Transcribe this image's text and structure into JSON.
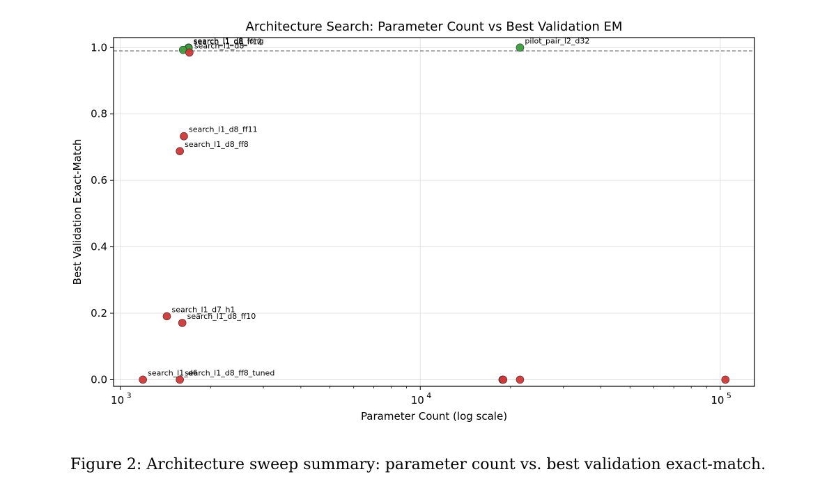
{
  "chart_data": {
    "type": "scatter",
    "title": "Architecture Search: Parameter Count vs Best Validation EM",
    "xlabel": "Parameter Count (log scale)",
    "ylabel": "Best Validation Exact-Match",
    "xscale": "log",
    "xlim": [
      950,
      130000
    ],
    "ylim": [
      -0.02,
      1.03
    ],
    "x_ticks": [
      {
        "value": 1000,
        "base": "10",
        "exp": "3"
      },
      {
        "value": 10000,
        "base": "10",
        "exp": "4"
      },
      {
        "value": 100000,
        "base": "10",
        "exp": "5"
      }
    ],
    "y_ticks": [
      {
        "value": 0.0,
        "label": "0.0"
      },
      {
        "value": 0.2,
        "label": "0.2"
      },
      {
        "value": 0.4,
        "label": "0.4"
      },
      {
        "value": 0.6,
        "label": "0.6"
      },
      {
        "value": 0.8,
        "label": "0.8"
      },
      {
        "value": 1.0,
        "label": "1.0"
      }
    ],
    "grid": true,
    "reference_line": {
      "y": 0.99,
      "style": "dashed",
      "color": "#7f7f7f"
    },
    "colors": {
      "pass": "#3a9e3a",
      "fail": "#d23535"
    },
    "points": [
      {
        "x": 1690,
        "y": 1.0,
        "label": "search_l1_d8_long",
        "status": "pass"
      },
      {
        "x": 1690,
        "y": 0.998,
        "label": "search_l1_d8_ff12",
        "status": "pass"
      },
      {
        "x": 1620,
        "y": 0.993,
        "label": "",
        "status": "pass"
      },
      {
        "x": 1700,
        "y": 0.985,
        "label": "search_l1_d8",
        "status": "fail"
      },
      {
        "x": 21500,
        "y": 1.0,
        "label": "pilot_pair_l2_d32",
        "status": "pass"
      },
      {
        "x": 1630,
        "y": 0.733,
        "label": "search_l1_d8_ff11",
        "status": "fail"
      },
      {
        "x": 1580,
        "y": 0.688,
        "label": "search_l1_d8_ff8",
        "status": "fail"
      },
      {
        "x": 1430,
        "y": 0.191,
        "label": "search_l1_d7_h1",
        "status": "fail"
      },
      {
        "x": 1610,
        "y": 0.171,
        "label": "search_l1_d8_ff10",
        "status": "fail"
      },
      {
        "x": 1190,
        "y": 0.0,
        "label": "search_l1_d6",
        "status": "fail"
      },
      {
        "x": 1580,
        "y": 0.0,
        "label": "search_l1_d8_ff8_tuned",
        "status": "fail"
      },
      {
        "x": 18800,
        "y": 0.0,
        "label": "",
        "status": "fail"
      },
      {
        "x": 18900,
        "y": 0.0,
        "label": "",
        "status": "fail"
      },
      {
        "x": 21500,
        "y": 0.0,
        "label": "",
        "status": "fail"
      },
      {
        "x": 104000,
        "y": 0.0,
        "label": "",
        "status": "fail"
      }
    ]
  },
  "caption": "Figure 2: Architecture sweep summary: parameter count vs. best validation exact-match."
}
